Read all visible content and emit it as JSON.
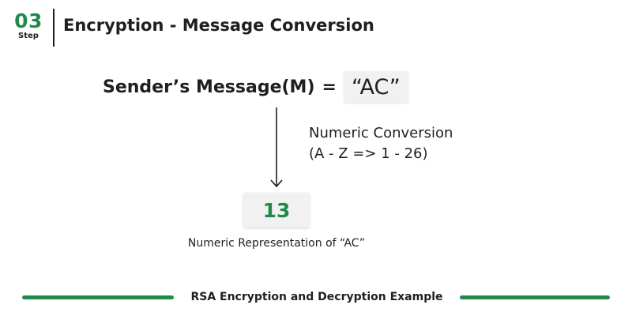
{
  "header": {
    "step_number": "03",
    "step_label": "Step",
    "title": "Encryption - Message Conversion"
  },
  "message": {
    "label": "Sender’s Message(M)",
    "equals": "=",
    "value": "“AC”"
  },
  "conversion": {
    "line1": "Numeric Conversion",
    "line2": "(A - Z => 1 - 26)"
  },
  "result": {
    "value": "13",
    "caption": "Numeric Representation of “AC”"
  },
  "footer": {
    "text": "RSA Encryption and Decryption Example"
  },
  "colors": {
    "accent": "#1f8a4c",
    "text": "#1f1f1f",
    "box_background": "#f1f1f1"
  }
}
